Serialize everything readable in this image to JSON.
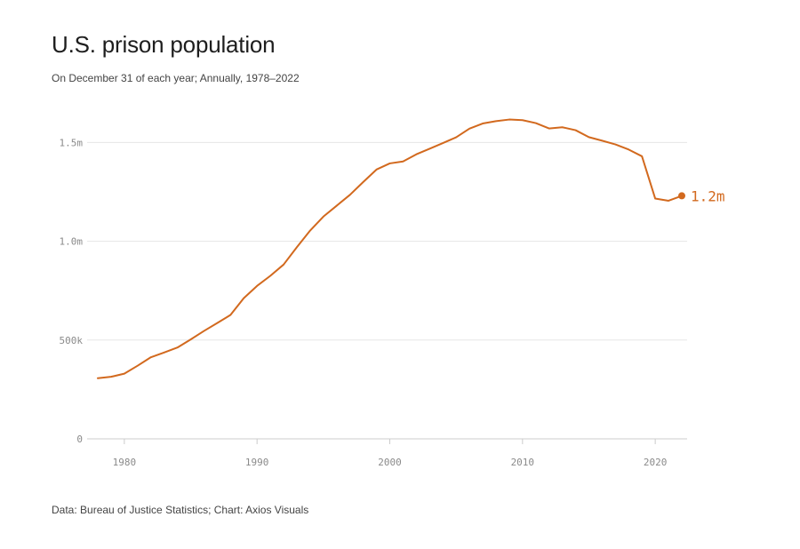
{
  "header": {
    "title": "U.S. prison population",
    "subtitle": "On December 31 of each year; Annually, 1978–2022"
  },
  "footer": {
    "source": "Data: Bureau of Justice Statistics; Chart: Axios Visuals"
  },
  "colors": {
    "line": "#d2691e",
    "grid": "#e6e6e6",
    "axis": "#cccccc",
    "tick_text": "#8a8a8a"
  },
  "chart_data": {
    "type": "line",
    "title": "U.S. prison population",
    "subtitle": "On December 31 of each year; Annually, 1978–2022",
    "xlabel": "",
    "ylabel": "",
    "xlim": [
      1978,
      2022
    ],
    "ylim": [
      0,
      1650000
    ],
    "grid": true,
    "y_ticks": [
      {
        "value": 0,
        "label": "0"
      },
      {
        "value": 500000,
        "label": "500k"
      },
      {
        "value": 1000000,
        "label": "1.0m"
      },
      {
        "value": 1500000,
        "label": "1.5m"
      }
    ],
    "x_ticks": [
      {
        "value": 1980,
        "label": "1980"
      },
      {
        "value": 1990,
        "label": "1990"
      },
      {
        "value": 2000,
        "label": "2000"
      },
      {
        "value": 2010,
        "label": "2010"
      },
      {
        "value": 2020,
        "label": "2020"
      }
    ],
    "series": [
      {
        "name": "U.S. prison population",
        "x": [
          1978,
          1979,
          1980,
          1981,
          1982,
          1983,
          1984,
          1985,
          1986,
          1987,
          1988,
          1989,
          1990,
          1991,
          1992,
          1993,
          1994,
          1995,
          1996,
          1997,
          1998,
          1999,
          2000,
          2001,
          2002,
          2003,
          2004,
          2005,
          2006,
          2007,
          2008,
          2009,
          2010,
          2011,
          2012,
          2013,
          2014,
          2015,
          2016,
          2017,
          2018,
          2019,
          2020,
          2021,
          2022
        ],
        "values": [
          307000,
          314000,
          330000,
          370000,
          413000,
          437000,
          462000,
          503000,
          546000,
          586000,
          627000,
          712000,
          774000,
          825000,
          882000,
          970000,
          1054000,
          1125000,
          1180000,
          1235000,
          1300000,
          1363000,
          1394000,
          1404000,
          1440000,
          1468000,
          1497000,
          1526000,
          1570000,
          1596000,
          1608000,
          1616000,
          1613000,
          1598000,
          1571000,
          1577000,
          1562000,
          1527000,
          1509000,
          1490000,
          1464000,
          1430000,
          1216000,
          1205000,
          1230000
        ]
      }
    ],
    "end_label": "1.2m"
  }
}
